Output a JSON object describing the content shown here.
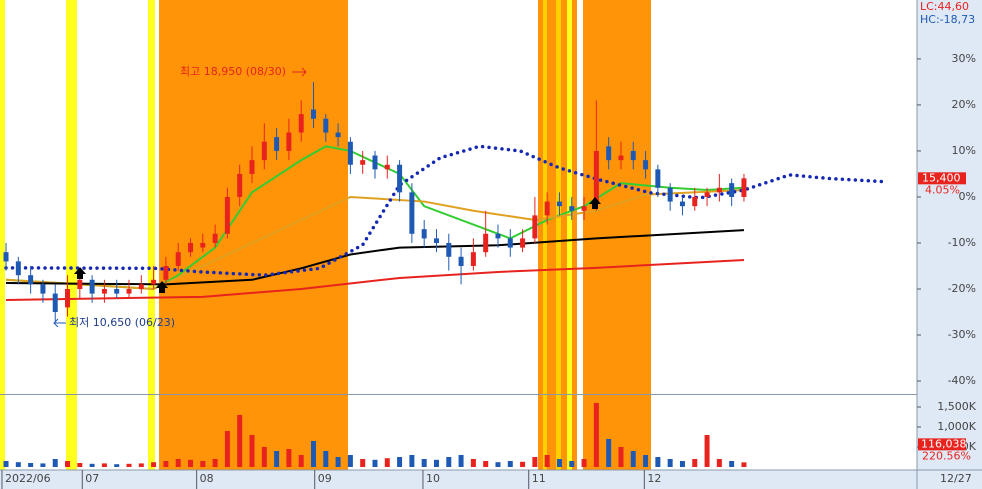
{
  "chart_data": {
    "type": "candlestick",
    "lc_label": "LC:44,60",
    "hc_label": "HC:-18,73",
    "last_price": "15,400",
    "last_change": "4.05%",
    "annotations": {
      "high": "최고 18,950 (08/30)",
      "low": "최저 10,650 (06/23)"
    },
    "xlim": [
      -0.49,
      74.07
    ],
    "ylim": [
      -42.6,
      42.8
    ],
    "xticks": [
      {
        "value": -0.33,
        "label": "2022/06"
      },
      {
        "value": 6.2,
        "label": "07"
      },
      {
        "value": 15.5,
        "label": "08"
      },
      {
        "value": 25.1,
        "label": "09"
      },
      {
        "value": 33.9,
        "label": "10"
      },
      {
        "value": 42.5,
        "label": "11"
      },
      {
        "value": 51.9,
        "label": "12"
      }
    ],
    "last_date": "12/27",
    "yticks": [
      {
        "value": 30,
        "label": "30%"
      },
      {
        "value": 20,
        "label": "20%"
      },
      {
        "value": 10,
        "label": "10%"
      },
      {
        "value": 0,
        "label": "0%"
      },
      {
        "value": -10,
        "label": "-10%"
      },
      {
        "value": -20,
        "label": "-20%"
      },
      {
        "value": -30,
        "label": "-30%"
      },
      {
        "value": -40,
        "label": "-40%"
      }
    ],
    "up_color": "#e8231e",
    "down_color": "#1e5ab4",
    "open": [
      -12,
      -14,
      -17,
      -19,
      -21,
      -24,
      -20,
      -18,
      -21,
      -20,
      -21,
      -20,
      -19,
      -18,
      -15,
      -12,
      -11,
      -10,
      -8,
      0,
      5,
      8,
      13,
      10,
      14,
      19,
      17,
      14,
      12,
      7,
      9,
      6,
      7,
      1,
      -7,
      -9,
      -10,
      -13,
      -15,
      -12,
      -8,
      -9,
      -11,
      -9,
      -4,
      -1,
      -2,
      -3,
      -1,
      11,
      8,
      10,
      8,
      6,
      2,
      -1,
      -2,
      0,
      1,
      3,
      0
    ],
    "high": [
      -10,
      -13,
      -15,
      -18,
      -19,
      -17,
      -16,
      -17,
      -18,
      -18,
      -18,
      -17,
      -15,
      -13,
      -10,
      -9,
      -8,
      -6,
      2,
      7,
      11,
      16,
      15,
      17,
      21,
      25,
      18,
      16,
      13,
      10,
      10,
      9,
      8,
      3,
      -5,
      -7,
      -8,
      -11,
      -9,
      -3,
      -6,
      -7,
      -7,
      0,
      1,
      1,
      0,
      0,
      21,
      13,
      12,
      12,
      10,
      7,
      3,
      0,
      2,
      2,
      5,
      4,
      5
    ],
    "low": [
      -16,
      -19,
      -21,
      -23,
      -27,
      -26,
      -22,
      -23,
      -23,
      -22,
      -22,
      -21,
      -20,
      -19,
      -16,
      -13,
      -12,
      -11,
      -9,
      -2,
      3,
      6,
      8,
      8,
      12,
      15,
      12,
      11,
      5,
      5,
      4,
      4,
      -1,
      -10,
      -11,
      -12,
      -16,
      -19,
      -16,
      -13,
      -11,
      -13,
      -12,
      -10,
      -6,
      -4,
      -5,
      -5,
      -3,
      6,
      6,
      6,
      4,
      0,
      -3,
      -4,
      -3,
      -2,
      -1,
      -2,
      -1
    ],
    "close": [
      -14,
      -17,
      -19,
      -21,
      -25,
      -20,
      -18,
      -21,
      -20,
      -21,
      -20,
      -19,
      -18,
      -15,
      -12,
      -10,
      -10,
      -8,
      0,
      5,
      8,
      12,
      10,
      14,
      18,
      17,
      14,
      13,
      7,
      8,
      6,
      7,
      1,
      -8,
      -9,
      -10,
      -13,
      -15,
      -12,
      -8,
      -9,
      -11,
      -9,
      -4,
      -1,
      -2,
      -3,
      -2,
      10,
      8,
      9,
      8,
      6,
      2,
      -1,
      -2,
      0,
      1,
      2,
      0,
      4.05
    ],
    "lines": [
      {
        "color": "#33cc33",
        "x": [
          0,
          12,
          14,
          17,
          20,
          24,
          26,
          28,
          32,
          34,
          38,
          41,
          44,
          47,
          50,
          54,
          57,
          60
        ],
        "values": [
          -18,
          -20,
          -17,
          -11,
          1,
          8,
          11,
          10,
          5,
          -2,
          -6,
          -9,
          -5,
          -2,
          3,
          2,
          1.5,
          2
        ]
      },
      {
        "color": "#e0a020",
        "x": [
          0,
          12,
          20,
          28,
          34,
          38,
          43,
          48,
          52,
          60
        ],
        "values": [
          -18,
          -20,
          -10,
          0,
          -1,
          -3,
          -5,
          -3,
          0.5,
          1.5
        ]
      },
      {
        "color": "#000000",
        "x": [
          0,
          13,
          20,
          24,
          28,
          32,
          40,
          48,
          60
        ],
        "values": [
          -18.7,
          -19,
          -18,
          -15.5,
          -12.5,
          -11,
          -10.5,
          -9,
          -7.2
        ]
      },
      {
        "color": "#e8231e",
        "x": [
          0,
          16,
          24,
          32,
          40,
          48,
          60
        ],
        "values": [
          -22.4,
          -21.7,
          -20,
          -17.6,
          -16.3,
          -15.4,
          -13.7
        ]
      },
      {
        "color": "#1428b4",
        "dotted": true,
        "x": [
          0,
          12,
          16,
          21,
          25.5,
          29,
          32,
          35.3,
          38.5,
          41.8,
          45,
          48.3,
          52.4,
          56.4,
          60,
          63.7,
          67,
          71.5
        ],
        "values": [
          -15.4,
          -15.5,
          -16.3,
          -17,
          -15.5,
          -10.4,
          2.6,
          8.5,
          11,
          10,
          6.3,
          3.7,
          0.9,
          -0.2,
          1.5,
          4.8,
          4,
          3.3
        ]
      }
    ],
    "volume": {
      "ylim": [
        0,
        1775
      ],
      "yticks": [
        {
          "value": 1500,
          "label": "1,500K"
        },
        {
          "value": 1000,
          "label": "1,000K"
        },
        {
          "value": 500,
          "label": "500K"
        }
      ],
      "values": [
        150,
        120,
        100,
        90,
        200,
        150,
        100,
        80,
        90,
        70,
        80,
        90,
        120,
        150,
        200,
        180,
        150,
        200,
        900,
        1300,
        800,
        500,
        400,
        450,
        300,
        650,
        400,
        250,
        300,
        200,
        180,
        220,
        250,
        300,
        200,
        180,
        250,
        300,
        200,
        150,
        120,
        150,
        130,
        250,
        300,
        200,
        150,
        200,
        1600,
        700,
        500,
        400,
        300,
        250,
        200,
        150,
        200,
        800,
        200,
        150,
        116.038
      ],
      "last": {
        "value": 116.038,
        "label": "116,038"
      },
      "change": "220.56%"
    }
  }
}
